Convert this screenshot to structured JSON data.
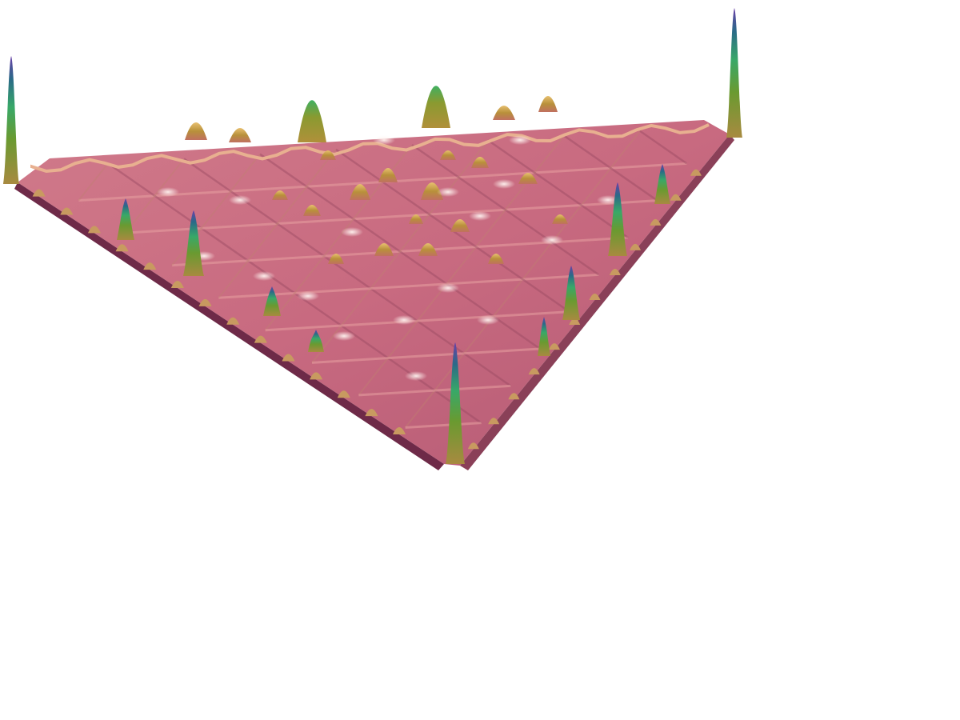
{
  "scene": {
    "background_color": "#ffffff",
    "surface_type": "3d-triangular-surface-plot",
    "shading": "specular-lit",
    "colors": {
      "surface_base": "#c86a80",
      "surface_light": "#e89aa8",
      "surface_shadow": "#6e2a48",
      "ridge_gold": "#b08a3a",
      "ridge_gold_light": "#e8c070",
      "highlight": "#fff2f0",
      "spike_low": "#9a8030",
      "spike_mid": "#38a868",
      "spike_high": "#2a6a88",
      "spike_top": "#5a3a9a"
    }
  }
}
